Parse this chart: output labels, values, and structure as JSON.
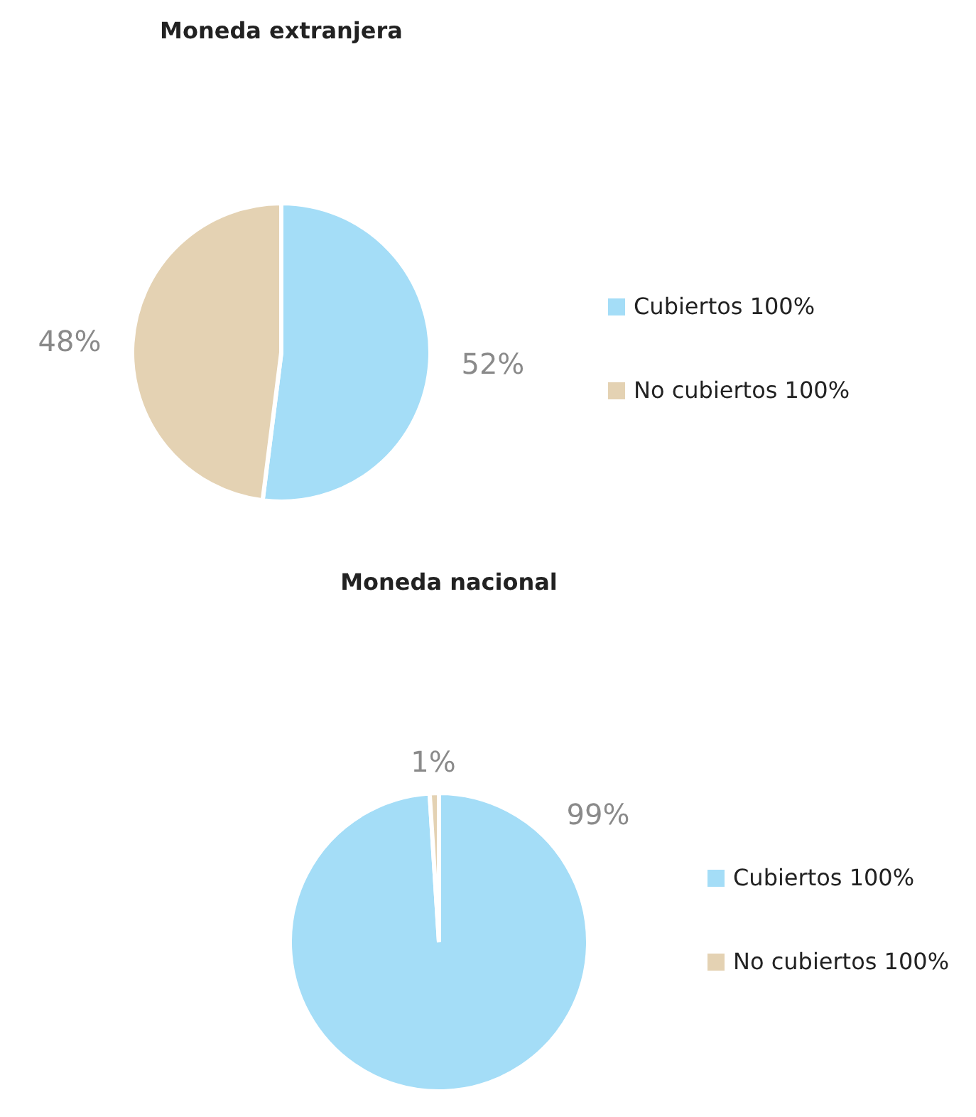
{
  "chart_data": [
    {
      "type": "pie",
      "title": "Moneda extranjera",
      "categories": [
        "Cubiertos 100%",
        "No cubiertos 100%"
      ],
      "values": [
        52,
        48
      ],
      "colors": [
        "#a4ddf7",
        "#e4d2b3"
      ],
      "value_labels": [
        "52%",
        "48%"
      ],
      "legend": "right"
    },
    {
      "type": "pie",
      "title": "Moneda nacional",
      "categories": [
        "Cubiertos 100%",
        "No cubiertos 100%"
      ],
      "values": [
        99,
        1
      ],
      "colors": [
        "#a4ddf7",
        "#e4d2b3"
      ],
      "value_labels": [
        "99%",
        "1%"
      ],
      "legend": "right"
    }
  ]
}
